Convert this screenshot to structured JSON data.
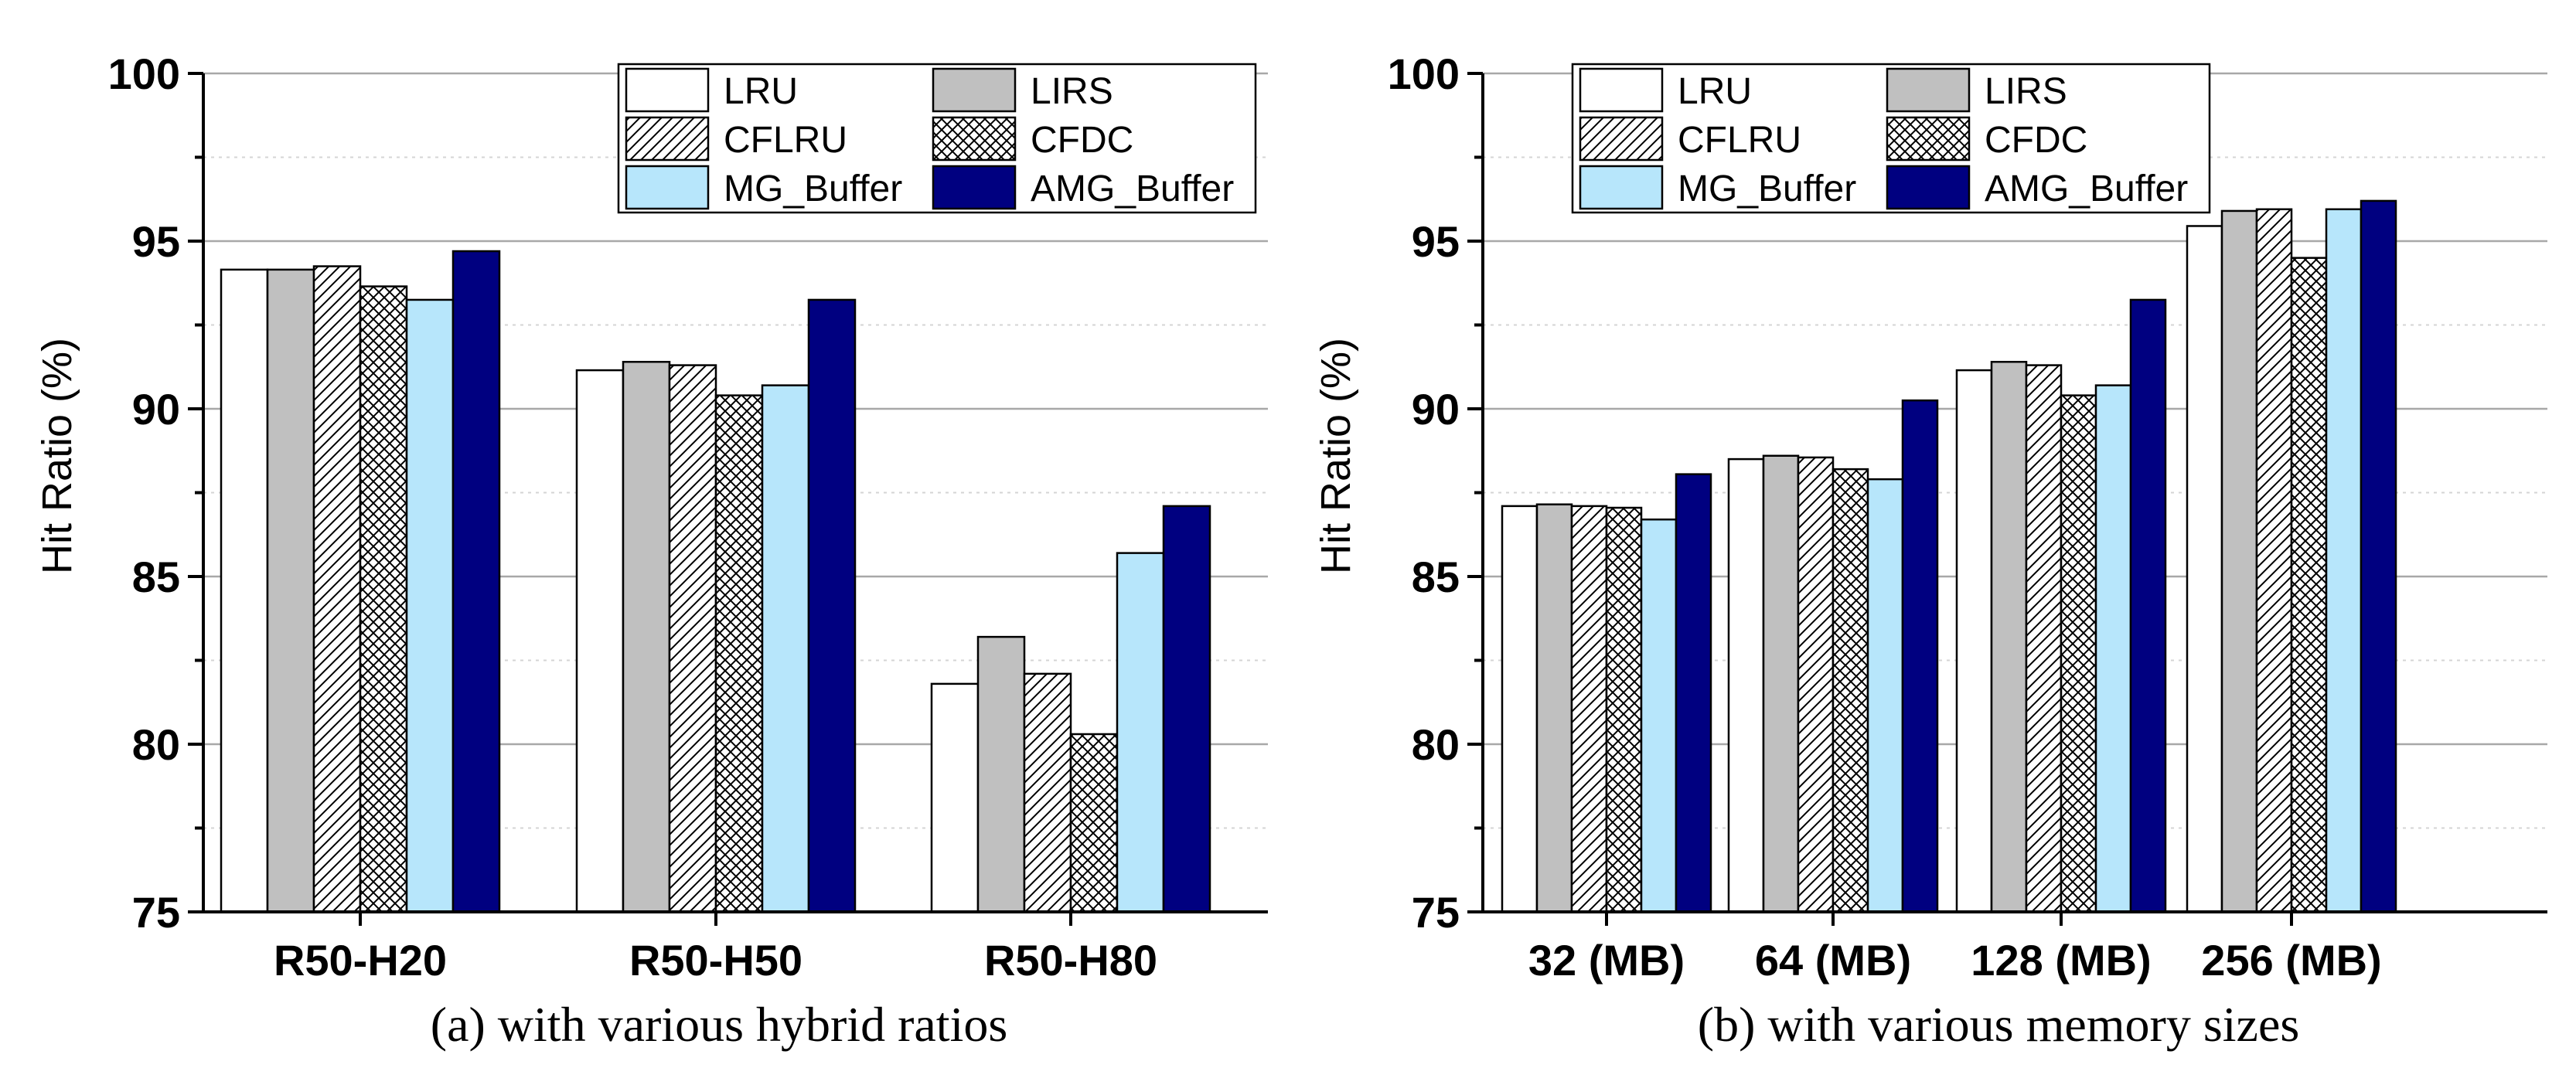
{
  "chart_data": [
    {
      "type": "bar",
      "caption": "(a) with various hybrid ratios",
      "xlabel": "",
      "ylabel": "Hit Ratio (%)",
      "ylim": [
        75,
        100
      ],
      "yticks": [
        "75",
        "80",
        "85",
        "90",
        "95",
        "100"
      ],
      "grid": true,
      "legend_position": "top-right",
      "categories": [
        "R50-H20",
        "R50-H50",
        "R50-H80"
      ],
      "series": [
        {
          "name": "LRU",
          "values": [
            94.15,
            91.15,
            81.8
          ]
        },
        {
          "name": "LIRS",
          "values": [
            94.15,
            91.4,
            83.2
          ]
        },
        {
          "name": "CFLRU",
          "values": [
            94.25,
            91.3,
            82.1
          ]
        },
        {
          "name": "CFDC",
          "values": [
            93.65,
            90.4,
            80.3
          ]
        },
        {
          "name": "MG_Buffer",
          "values": [
            93.25,
            90.7,
            85.7
          ]
        },
        {
          "name": "AMG_Buffer",
          "values": [
            94.7,
            93.25,
            87.1
          ]
        }
      ]
    },
    {
      "type": "bar",
      "caption": "(b) with various memory sizes",
      "xlabel": "",
      "ylabel": "Hit Ratio (%)",
      "ylim": [
        75,
        100
      ],
      "yticks": [
        "75",
        "80",
        "85",
        "90",
        "95",
        "100"
      ],
      "grid": true,
      "legend_position": "top-left",
      "categories": [
        "32 (MB)",
        "64 (MB)",
        "128 (MB)",
        "256 (MB)"
      ],
      "series": [
        {
          "name": "LRU",
          "values": [
            87.1,
            88.5,
            91.15,
            95.45
          ]
        },
        {
          "name": "LIRS",
          "values": [
            87.15,
            88.6,
            91.4,
            95.9
          ]
        },
        {
          "name": "CFLRU",
          "values": [
            87.1,
            88.55,
            91.3,
            95.95
          ]
        },
        {
          "name": "CFDC",
          "values": [
            87.05,
            88.2,
            90.4,
            94.5
          ]
        },
        {
          "name": "MG_Buffer",
          "values": [
            86.7,
            87.9,
            90.7,
            95.95
          ]
        },
        {
          "name": "AMG_Buffer",
          "values": [
            88.05,
            90.25,
            93.25,
            96.2
          ]
        }
      ]
    }
  ],
  "styles": {
    "LRU": {
      "fill": "#ffffff",
      "pattern": "none"
    },
    "LIRS": {
      "fill": "#c0c0c0",
      "pattern": "none"
    },
    "CFLRU": {
      "fill": "#ffffff",
      "pattern": "diagonal"
    },
    "CFDC": {
      "fill": "#ffffff",
      "pattern": "crosshatch"
    },
    "MG_Buffer": {
      "fill": "#b7e6fb",
      "pattern": "none"
    },
    "AMG_Buffer": {
      "fill": "#000080",
      "pattern": "none"
    }
  }
}
